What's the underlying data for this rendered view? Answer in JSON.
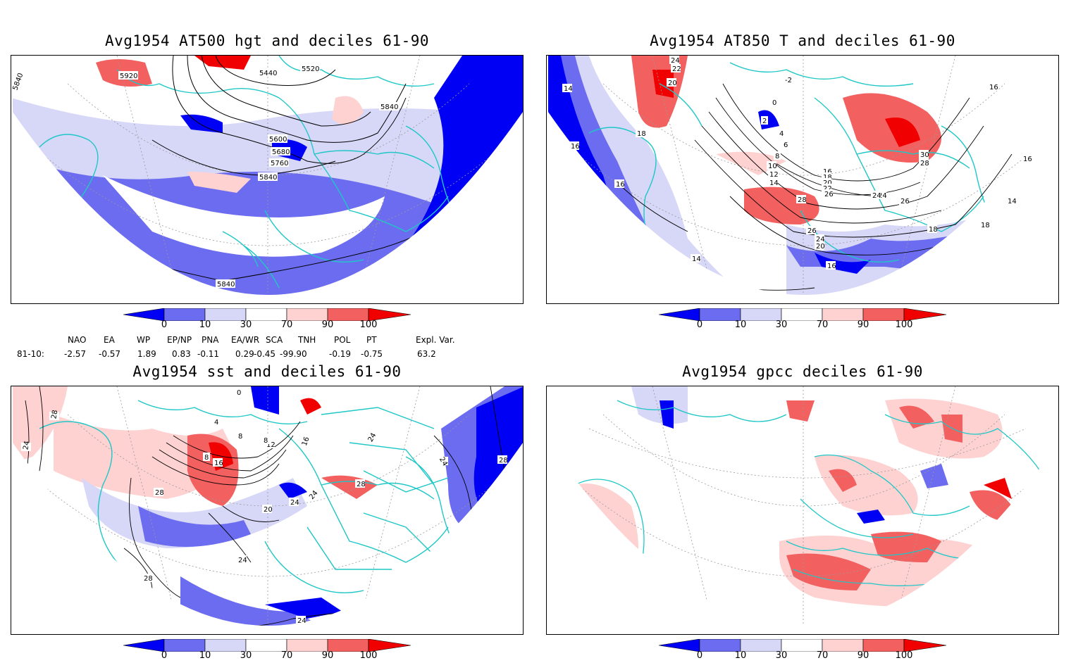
{
  "panels": [
    {
      "title": "Avg1954 AT500 hgt and deciles 61-90",
      "contour_labels": [
        "5920",
        "5440",
        "5520",
        "5840",
        "5600",
        "5680",
        "5760",
        "5840",
        "5840",
        "5840"
      ]
    },
    {
      "title": "Avg1954 AT850 T and deciles 61-90",
      "contour_labels": [
        "14",
        "16",
        "18",
        "20",
        "22",
        "24",
        "2",
        "-2",
        "0",
        "4",
        "6",
        "8",
        "10",
        "12",
        "14",
        "16",
        "18",
        "20",
        "22",
        "24",
        "26",
        "28",
        "30",
        "28",
        "26",
        "24",
        "16",
        "18",
        "18",
        "14",
        "16",
        "14",
        "16",
        "26",
        "24",
        "20",
        "16"
      ]
    },
    {
      "title": "Avg1954 sst and deciles 61-90",
      "contour_labels": [
        "28",
        "24",
        "28",
        "28",
        "16",
        "20",
        "24",
        "24",
        "28",
        "12",
        "16",
        "24",
        "24",
        "24",
        "24",
        "28",
        "8",
        "8",
        "8",
        "4",
        "0"
      ]
    },
    {
      "title": "Avg1954 gpcc deciles 61-90",
      "contour_labels": []
    }
  ],
  "colorbar": {
    "ticks": [
      "0",
      "10",
      "30",
      "70",
      "90",
      "100"
    ],
    "colors": [
      "#0000f5",
      "#6c6cf0",
      "#d7d7f8",
      "#ffffff",
      "#ffd2d2",
      "#f26060",
      "#f00000"
    ]
  },
  "indices": {
    "headers": [
      "NAO",
      "EA",
      "WP",
      "EP/NP",
      "PNA",
      "EA/WR",
      "SCA",
      "TNH",
      "POL",
      "PT",
      "Expl. Var."
    ],
    "row_label": "81-10:",
    "values": [
      "-2.57",
      "-0.57",
      "1.89",
      "0.83",
      "-0.11",
      "0.29",
      "-0.45",
      "-99.90",
      "-0.19",
      "-0.75",
      "63.2"
    ]
  },
  "colors": {
    "coast": "#1fc7c7",
    "contour": "#000000"
  }
}
